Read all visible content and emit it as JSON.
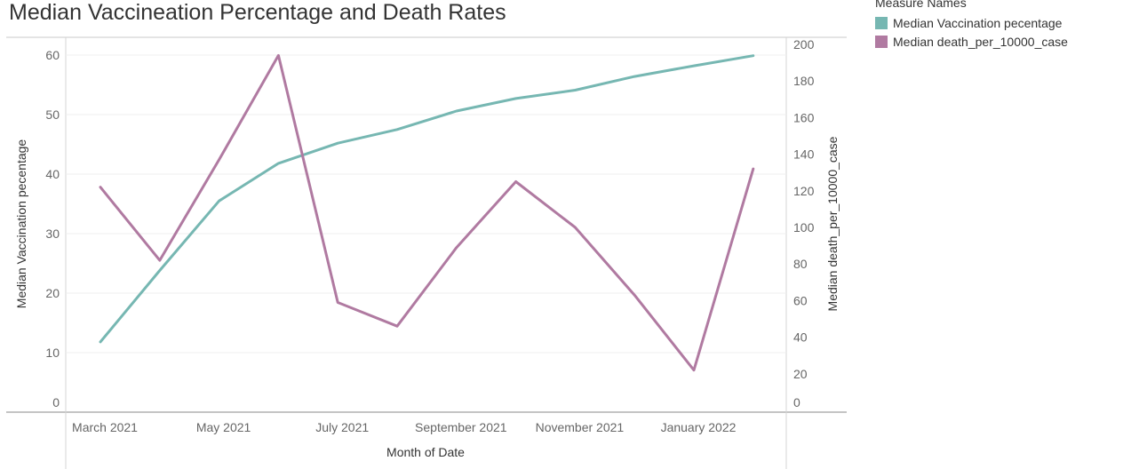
{
  "title": "Median Vaccineation Percentage and Death Rates",
  "legend": {
    "title": "Measure Names",
    "items": [
      {
        "label": "Median Vaccination pecentage",
        "color": "#76b7b2"
      },
      {
        "label": "Median death_per_10000_case",
        "color": "#b07aa1"
      }
    ]
  },
  "chart_data": {
    "type": "line",
    "title": "Median Vaccineation Percentage and Death Rates",
    "xlabel": "Month of Date",
    "ylabel": "Median Vaccination pecentage",
    "y2label": "Median death_per_10000_case",
    "x": [
      "Mar 2021",
      "Apr 2021",
      "May 2021",
      "Jun 2021",
      "Jul 2021",
      "Aug 2021",
      "Sep 2021",
      "Oct 2021",
      "Nov 2021",
      "Dec 2021",
      "Jan 2022",
      "Feb 2022"
    ],
    "x_tick_labels": [
      "March 2021",
      "May 2021",
      "July 2021",
      "September 2021",
      "November 2021",
      "January 2022"
    ],
    "x_tick_indices": [
      0,
      2,
      4,
      6,
      8,
      10
    ],
    "ylim": [
      0,
      62
    ],
    "y_ticks": [
      0,
      10,
      20,
      30,
      40,
      50,
      60
    ],
    "y2lim": [
      0,
      200
    ],
    "y2_ticks": [
      0,
      20,
      40,
      60,
      80,
      100,
      120,
      140,
      160,
      180,
      200
    ],
    "series": [
      {
        "name": "Median Vaccination pecentage",
        "axis": "left",
        "color": "#76b7b2",
        "values": [
          11.8,
          23.8,
          35.5,
          41.8,
          45.2,
          47.5,
          50.6,
          52.7,
          54.1,
          56.4,
          58.2,
          59.9
        ]
      },
      {
        "name": "Median death_per_10000_case",
        "axis": "right",
        "color": "#b07aa1",
        "values": [
          122,
          82,
          137,
          194,
          59,
          46,
          89,
          125,
          100,
          63,
          22,
          132
        ]
      }
    ],
    "grid": true
  }
}
